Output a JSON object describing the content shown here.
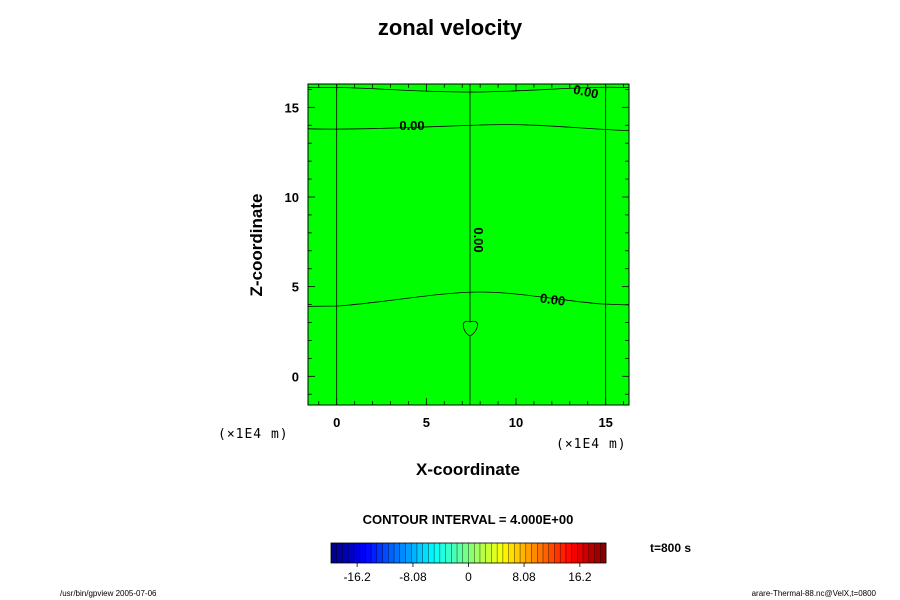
{
  "chart_data": {
    "type": "heatmap",
    "title": "zonal velocity",
    "xlabel": "X-coordinate",
    "ylabel": "Z-coordinate",
    "x_unit": "(×1E4 m)",
    "y_unit": "(×1E4 m)",
    "x_ticks": [
      0,
      5,
      10,
      15
    ],
    "y_ticks": [
      0,
      5,
      10,
      15
    ],
    "xlim": [
      -1.6,
      16.3
    ],
    "ylim": [
      -1.6,
      16.3
    ],
    "grid": false,
    "contour_interval_text": "CONTOUR INTERVAL = 4.000E+00",
    "contour_labels": [
      "0.00",
      "0.00",
      "0.00",
      "0.00"
    ],
    "colorbar": {
      "tick_labels": [
        "-16.2",
        "-8.08",
        "0",
        "8.08",
        "16.2"
      ],
      "tick_values": [
        -16.2,
        -8.08,
        0,
        8.08,
        16.2
      ],
      "range": [
        -20,
        20
      ]
    },
    "time_label": "t=800 s",
    "field_color": "#00ff00"
  },
  "footer": {
    "left": "/usr/bin/gpview 2005-07-06",
    "right": "arare-Thermal-88.nc@VelX,t=0800"
  }
}
